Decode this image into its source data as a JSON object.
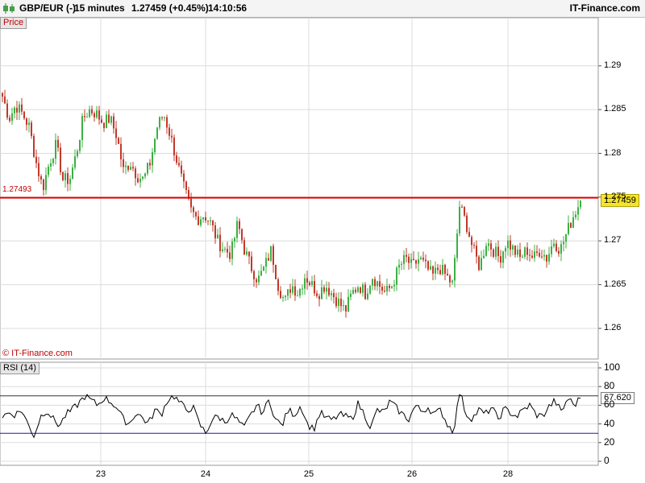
{
  "header": {
    "pair": "GBP/EUR (-)",
    "interval": "15 minutes",
    "quote": "1.27459 (+0.45%)",
    "time": "14:10:56",
    "brand": "IT-Finance.com"
  },
  "panels": {
    "price_label": "Price",
    "rsi_label": "RSI (14)",
    "copyright": "© IT-Finance.com",
    "reference_label": "1.27493",
    "last_price": "1.27459",
    "rsi_value": "67.620"
  },
  "colors": {
    "up_candle": "#3cb043",
    "down_candle": "#c0392b",
    "reference_line": "#e00000",
    "grid": "#dcdcdc",
    "rsi_line": "#000000",
    "rsi_band_upper": "#333333",
    "rsi_band_lower": "#1a1ab0"
  },
  "chart_data": [
    {
      "type": "candlestick",
      "title": "GBP/EUR (-)",
      "ylim": [
        1.2565,
        1.2955
      ],
      "y_ticks": [
        "1.29",
        "1.285",
        "1.28",
        "1.275",
        "1.27",
        "1.265",
        "1.26"
      ],
      "x_ticks": [
        "23",
        "24",
        "25",
        "26",
        "28"
      ],
      "reference_level": 1.27493,
      "last_price": 1.27459,
      "close_path": [
        1.2865,
        1.284,
        1.2855,
        1.2845,
        1.283,
        1.279,
        1.276,
        1.279,
        1.281,
        1.277,
        1.277,
        1.28,
        1.284,
        1.285,
        1.2845,
        1.2835,
        1.284,
        1.282,
        1.278,
        1.279,
        1.2775,
        1.277,
        1.279,
        1.283,
        1.2845,
        1.282,
        1.279,
        1.276,
        1.2735,
        1.2725,
        1.273,
        1.272,
        1.27,
        1.269,
        1.2685,
        1.272,
        1.269,
        1.267,
        1.2655,
        1.267,
        1.269,
        1.265,
        1.263,
        1.265,
        1.264,
        1.266,
        1.265,
        1.264,
        1.265,
        1.264,
        1.263,
        1.262,
        1.264,
        1.265,
        1.264,
        1.266,
        1.265,
        1.264,
        1.265,
        1.267,
        1.268,
        1.267,
        1.268,
        1.267,
        1.266,
        1.267,
        1.266,
        1.265,
        1.274,
        1.272,
        1.269,
        1.267,
        1.27,
        1.269,
        1.268,
        1.27,
        1.269,
        1.268,
        1.269,
        1.268,
        1.269,
        1.268,
        1.27,
        1.269,
        1.271,
        1.273,
        1.2746
      ]
    },
    {
      "type": "line",
      "title": "RSI (14)",
      "ylim": [
        0,
        100
      ],
      "y_ticks": [
        100,
        80,
        60,
        40,
        20,
        0
      ],
      "upper_band": 70,
      "lower_band": 30,
      "last_value": 67.62,
      "values": [
        48,
        52,
        50,
        55,
        40,
        27,
        48,
        55,
        45,
        38,
        50,
        55,
        62,
        70,
        65,
        60,
        68,
        64,
        58,
        45,
        40,
        52,
        47,
        40,
        55,
        50,
        66,
        70,
        62,
        55,
        58,
        40,
        30,
        45,
        48,
        42,
        50,
        44,
        35,
        48,
        60,
        52,
        66,
        45,
        38,
        55,
        50,
        60,
        40,
        34,
        52,
        46,
        44,
        50,
        48,
        45,
        62,
        50,
        36,
        55,
        52,
        64,
        57,
        50,
        45,
        60,
        53,
        58,
        50,
        55,
        40,
        32,
        75,
        50,
        46,
        55,
        50,
        58,
        45,
        56,
        52,
        48,
        55,
        60,
        50,
        48,
        58,
        65,
        52,
        68,
        60,
        67.62
      ]
    }
  ]
}
